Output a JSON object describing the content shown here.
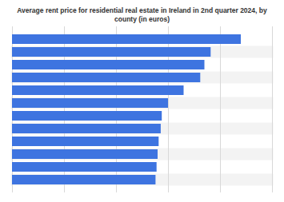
{
  "chart_data": {
    "type": "bar",
    "title": "Average rent price for residential real estate in Ireland in 2nd quarter 2024, by county (in euros)",
    "orientation": "horizontal",
    "categories": [
      null,
      null,
      null,
      null,
      null,
      null,
      null,
      null,
      null,
      null,
      null,
      null
    ],
    "values": [
      2200,
      1910,
      1850,
      1810,
      1650,
      1500,
      1440,
      1430,
      1410,
      1400,
      1390,
      1380
    ],
    "color": "#3e74e0",
    "xlim": [
      0,
      2500
    ],
    "xticks": [
      0,
      500,
      1000,
      1500,
      2000,
      2500
    ],
    "grid": true,
    "tick_labels": false
  }
}
